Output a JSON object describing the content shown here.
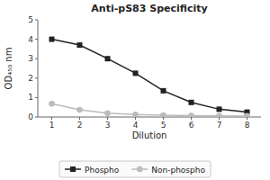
{
  "chart_data": {
    "type": "line",
    "title": "Anti-pS83 Specificity",
    "xlabel": "Dilution",
    "ylabel": "OD₄₅₀ nm",
    "x": [
      1,
      2,
      3,
      4,
      5,
      6,
      7,
      8
    ],
    "series": [
      {
        "name": "Phospho",
        "color": "#222222",
        "marker": "square",
        "line_style": "solid",
        "values": [
          4.0,
          3.7,
          3.0,
          2.25,
          1.35,
          0.75,
          0.4,
          0.25
        ]
      },
      {
        "name": "Non-phospho",
        "color": "#bbbbbb",
        "marker": "circle",
        "line_style": "solid",
        "values": [
          0.68,
          0.37,
          0.2,
          0.13,
          0.09,
          0.07,
          0.06,
          0.05
        ]
      }
    ],
    "xlim": [
      0.5,
      8.5
    ],
    "xticks": [
      1,
      2,
      3,
      4,
      5,
      6,
      7,
      8
    ],
    "ylim": [
      0,
      5
    ],
    "yticks": [
      0,
      1,
      2,
      3,
      4,
      5
    ],
    "grid": false,
    "legend": "bottom"
  }
}
